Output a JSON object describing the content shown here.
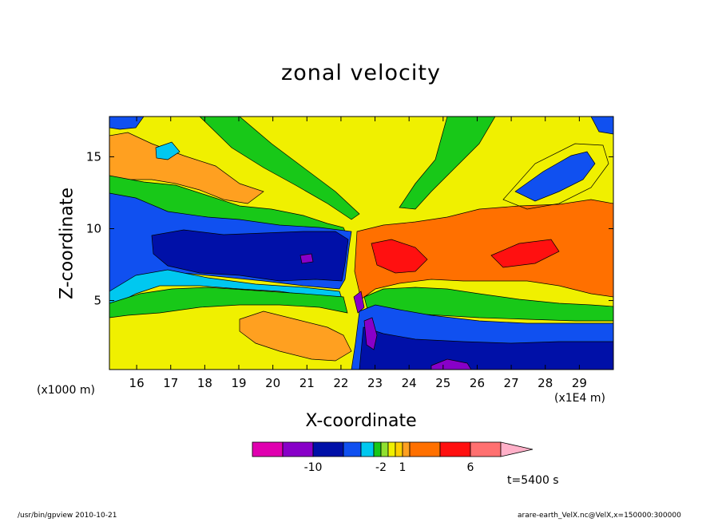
{
  "chart_data": {
    "type": "heatmap",
    "title": "zonal velocity",
    "xlabel": "X-coordinate",
    "ylabel": "Z-coordinate",
    "x_unit_label": "(x1E4 m)",
    "y_unit_label": "(x1000 m)",
    "xlim": [
      15.2,
      30.0
    ],
    "ylim": [
      0.2,
      17.8
    ],
    "x_ticks": [
      16,
      17,
      18,
      19,
      20,
      21,
      22,
      23,
      24,
      25,
      26,
      27,
      28,
      29
    ],
    "y_ticks": [
      5,
      10,
      15
    ],
    "colorbar": {
      "labeled_ticks": [
        {
          "index": 1,
          "label": "-10"
        },
        {
          "index": 5,
          "label": "-2"
        },
        {
          "index": 8,
          "label": "1"
        },
        {
          "index": 11,
          "label": "6"
        }
      ],
      "colors": [
        "#e000b0",
        "#8800c8",
        "#0010a8",
        "#1050f0",
        "#00c8f0",
        "#18c818",
        "#90e030",
        "#f0f000",
        "#ffd000",
        "#ffa020",
        "#ff7000",
        "#ff1010",
        "#ff7070",
        "#ffb0c8"
      ],
      "extend": "max"
    },
    "annotation": "t=5400 s",
    "features": [
      {
        "description": "negative (westward) flow layer",
        "x": [
          15.2,
          22.3
        ],
        "z": [
          5.5,
          11.5
        ],
        "min_value": -10
      },
      {
        "description": "positive (eastward) flow layer",
        "x": [
          22.6,
          30.0
        ],
        "z": [
          5.5,
          11.0
        ],
        "max_value": 6
      },
      {
        "description": "low-level negative flow",
        "x": [
          22.8,
          30.0
        ],
        "z": [
          0.2,
          4.5
        ]
      },
      {
        "description": "low-level positive flow",
        "x": [
          15.2,
          22.3
        ],
        "z": [
          0.2,
          4.5
        ]
      }
    ]
  },
  "footer": {
    "left": "/usr/bin/gpview  2010-10-21",
    "right": "arare-earth_VelX.nc@VelX,x=150000:300000"
  }
}
